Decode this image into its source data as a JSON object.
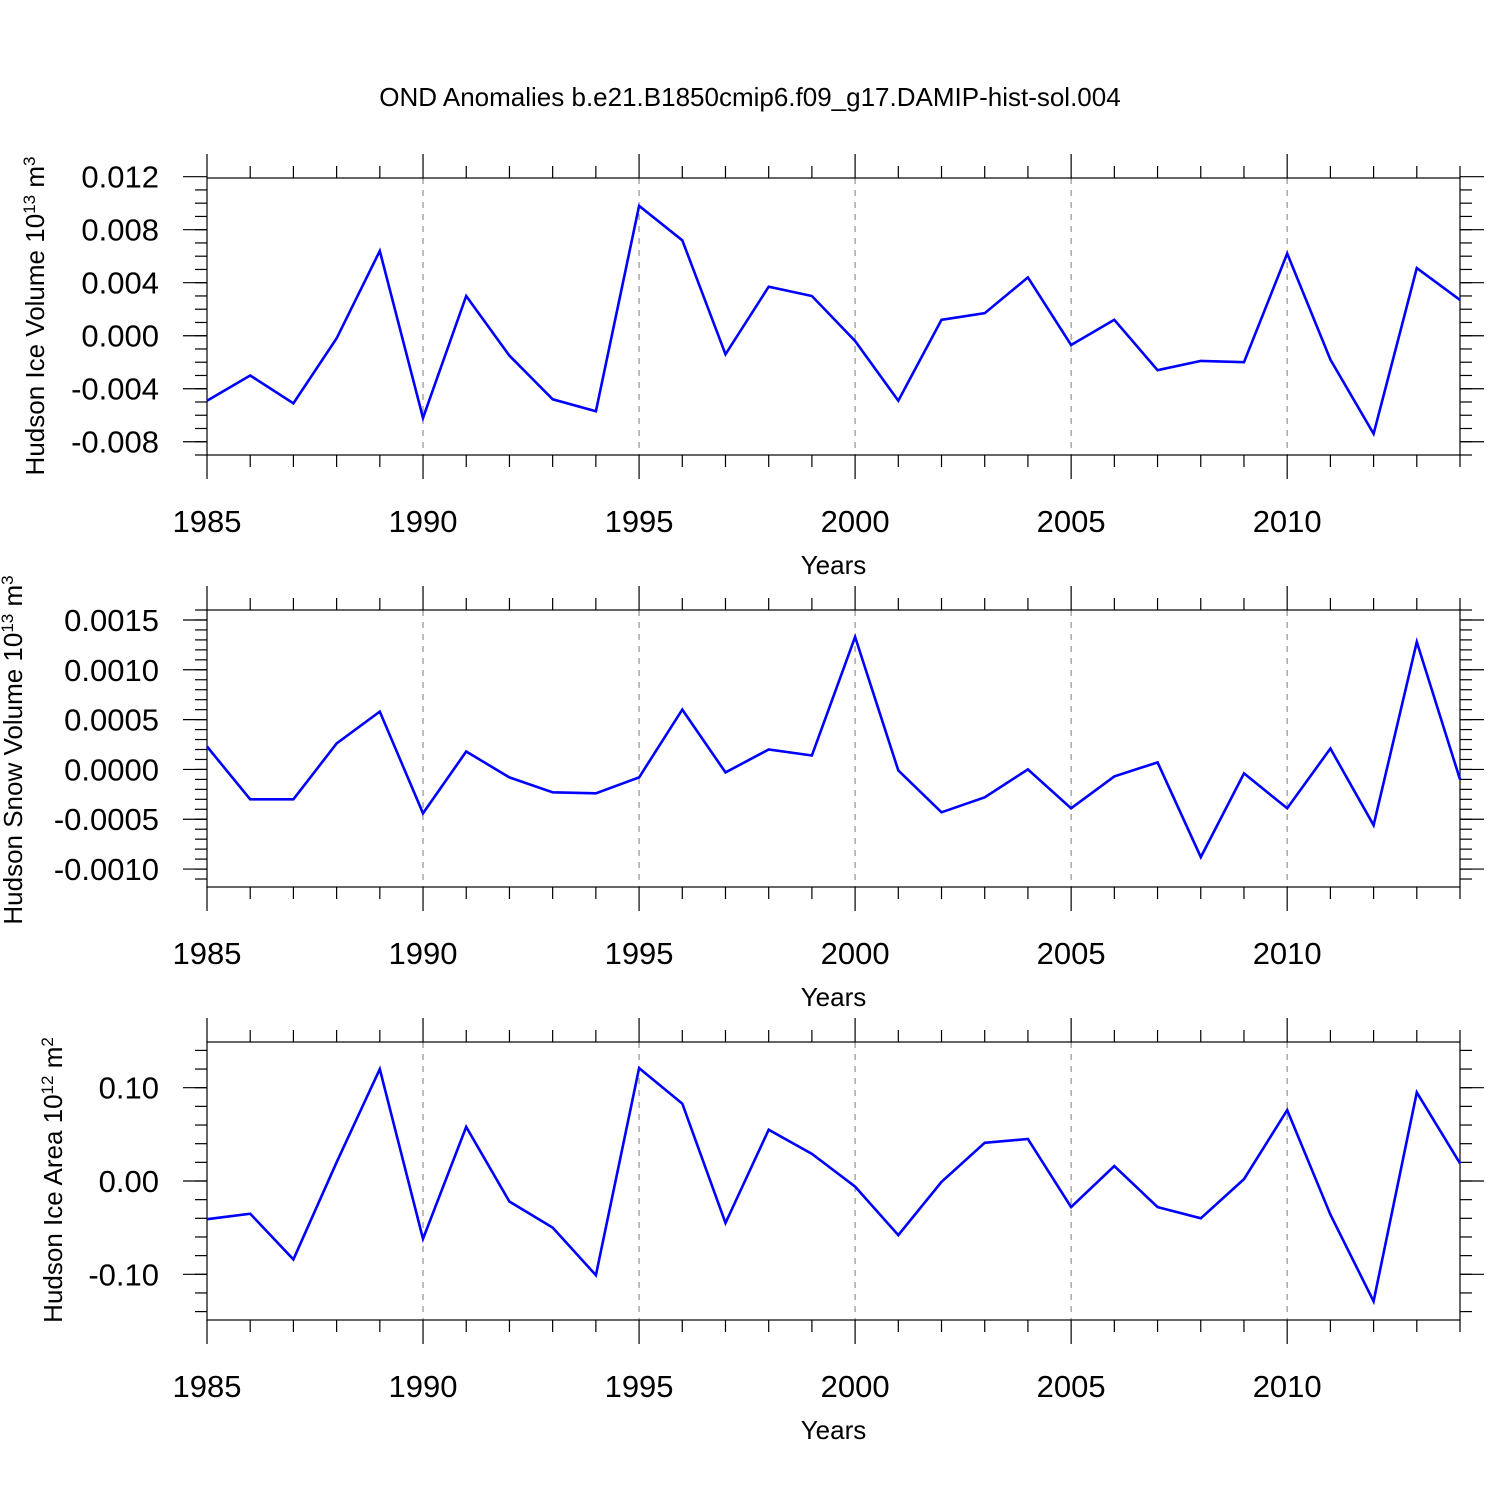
{
  "figure_title": "OND Anomalies b.e21.B1850cmip6.f09_g17.DAMIP-hist-sol.004",
  "chart_data": [
    {
      "type": "line",
      "title": "OND Anomalies b.e21.B1850cmip6.f09_g17.DAMIP-hist-sol.004",
      "xlabel": "Years",
      "ylabel": {
        "prefix": "Hudson Ice Volume 10",
        "exp": "13",
        "unit": " m",
        "unit_exp": "3"
      },
      "xlim": [
        1985,
        2014
      ],
      "ylim": [
        -0.009,
        0.0119
      ],
      "x_ticks": [
        "1985",
        "1990",
        "1995",
        "2000",
        "2005",
        "2010"
      ],
      "y_ticks": [
        "0.012",
        "0.008",
        "0.004",
        "0.000",
        "-0.004",
        "-0.008"
      ],
      "y_tick_values": [
        0.012,
        0.008,
        0.004,
        0.0,
        -0.004,
        -0.008
      ],
      "y_minor_step": 0.001,
      "grid": "dashed vertical at 1990, 1995, 2000, 2005, 2010",
      "color": "#0000ff",
      "x": [
        1985,
        1986,
        1987,
        1988,
        1989,
        1990,
        1991,
        1992,
        1993,
        1994,
        1995,
        1996,
        1997,
        1998,
        1999,
        2000,
        2001,
        2002,
        2003,
        2004,
        2005,
        2006,
        2007,
        2008,
        2009,
        2010,
        2011,
        2012,
        2013,
        2014
      ],
      "values": [
        -0.0049,
        -0.003,
        -0.0051,
        -0.0002,
        0.0064,
        -0.0062,
        0.003,
        -0.0015,
        -0.0048,
        -0.0057,
        0.0098,
        0.0072,
        -0.0014,
        0.0037,
        0.003,
        -0.0004,
        -0.0049,
        0.0012,
        0.0017,
        0.0044,
        -0.0007,
        0.0012,
        -0.0026,
        -0.0019,
        -0.002,
        0.0062,
        -0.0018,
        -0.0074,
        0.0051,
        0.0027
      ]
    },
    {
      "type": "line",
      "xlabel": "Years",
      "ylabel": {
        "prefix": "Hudson Snow Volume 10",
        "exp": "13",
        "unit": " m",
        "unit_exp": "3"
      },
      "xlim": [
        1985,
        2014
      ],
      "ylim": [
        -0.00118,
        0.0016
      ],
      "x_ticks": [
        "1985",
        "1990",
        "1995",
        "2000",
        "2005",
        "2010"
      ],
      "y_ticks": [
        "0.0015",
        "0.0010",
        "0.0005",
        "0.0000",
        "-0.0005",
        "-0.0010"
      ],
      "y_tick_values": [
        0.0015,
        0.001,
        0.0005,
        0.0,
        -0.0005,
        -0.001
      ],
      "y_minor_step": 0.0001,
      "grid": "dashed vertical at 1990, 1995, 2000, 2005, 2010",
      "color": "#0000ff",
      "x": [
        1985,
        1986,
        1987,
        1988,
        1989,
        1990,
        1991,
        1992,
        1993,
        1994,
        1995,
        1996,
        1997,
        1998,
        1999,
        2000,
        2001,
        2002,
        2003,
        2004,
        2005,
        2006,
        2007,
        2008,
        2009,
        2010,
        2011,
        2012,
        2013,
        2014
      ],
      "values": [
        0.00023,
        -0.0003,
        -0.0003,
        0.00026,
        0.00058,
        -0.00044,
        0.00018,
        -8e-05,
        -0.00023,
        -0.00024,
        -8e-05,
        0.0006,
        -3e-05,
        0.0002,
        0.00014,
        0.00133,
        -1e-05,
        -0.00043,
        -0.00028,
        0.0,
        -0.00039,
        -7e-05,
        7e-05,
        -0.00088,
        -4e-05,
        -0.00039,
        0.00021,
        -0.00056,
        0.00128,
        -0.0001
      ]
    },
    {
      "type": "line",
      "xlabel": "Years",
      "ylabel": {
        "prefix": "Hudson Ice Area 10",
        "exp": "12",
        "unit": " m",
        "unit_exp": "2"
      },
      "xlim": [
        1985,
        2014
      ],
      "ylim": [
        -0.149,
        0.149
      ],
      "x_ticks": [
        "1985",
        "1990",
        "1995",
        "2000",
        "2005",
        "2010"
      ],
      "y_ticks": [
        "0.10",
        "0.00",
        "-0.10"
      ],
      "y_tick_values": [
        0.1,
        0.0,
        -0.1
      ],
      "y_minor_step": 0.02,
      "grid": "dashed vertical at 1990, 1995, 2000, 2005, 2010",
      "color": "#0000ff",
      "x": [
        1985,
        1986,
        1987,
        1988,
        1989,
        1990,
        1991,
        1992,
        1993,
        1994,
        1995,
        1996,
        1997,
        1998,
        1999,
        2000,
        2001,
        2002,
        2003,
        2004,
        2005,
        2006,
        2007,
        2008,
        2009,
        2010,
        2011,
        2012,
        2013,
        2014
      ],
      "values": [
        -0.041,
        -0.035,
        -0.084,
        0.02,
        0.12,
        -0.062,
        0.058,
        -0.022,
        -0.05,
        -0.101,
        0.121,
        0.083,
        -0.045,
        0.055,
        0.029,
        -0.006,
        -0.058,
        -0.001,
        0.041,
        0.045,
        -0.028,
        0.016,
        -0.028,
        -0.04,
        0.002,
        0.076,
        -0.036,
        -0.129,
        0.095,
        0.019
      ]
    }
  ]
}
